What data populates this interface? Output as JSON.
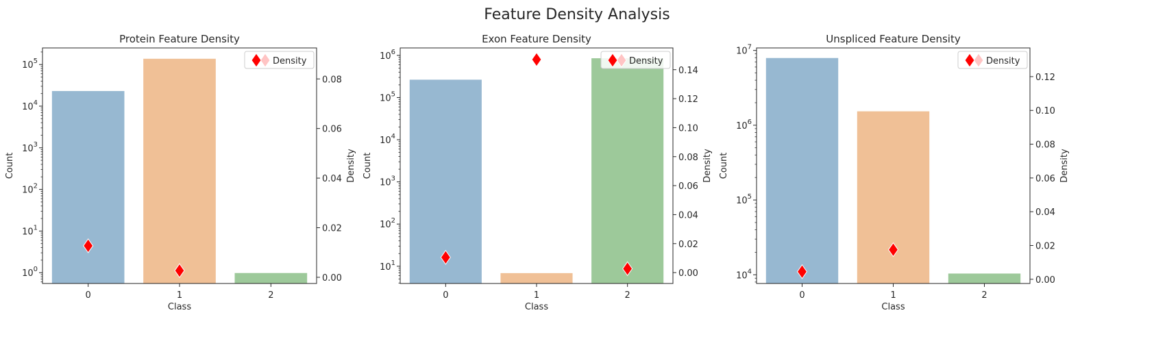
{
  "figure": {
    "title": "Feature Density Analysis"
  },
  "chart_data": [
    {
      "type": "bar",
      "title": "Protein Feature Density",
      "xlabel": "Class",
      "ylabel": "Count",
      "ylabel_right": "Density",
      "yscale": "log",
      "categories": [
        "0",
        "1",
        "2"
      ],
      "values": [
        23500,
        140000,
        1
      ],
      "ylim": [
        0.55,
        250000
      ],
      "y_ticks": [
        {
          "v": 1,
          "exp": "0"
        },
        {
          "v": 10,
          "exp": "1"
        },
        {
          "v": 100,
          "exp": "2"
        },
        {
          "v": 1000,
          "exp": "3"
        },
        {
          "v": 10000,
          "exp": "4"
        },
        {
          "v": 100000,
          "exp": "5"
        }
      ],
      "density": {
        "name": "Density",
        "values": [
          0.0127,
          0.0027,
          null
        ],
        "ylim": [
          -0.0025,
          0.0925
        ],
        "ticks": [
          "0.00",
          "0.02",
          "0.04",
          "0.06",
          "0.08"
        ],
        "tick_values": [
          0,
          0.02,
          0.04,
          0.06,
          0.08
        ]
      },
      "legend": {
        "position": "upper-right",
        "label": "Density"
      }
    },
    {
      "type": "bar",
      "title": "Exon Feature Density",
      "xlabel": "Class",
      "ylabel": "Count",
      "ylabel_right": "Density",
      "yscale": "log",
      "categories": [
        "0",
        "1",
        "2"
      ],
      "values": [
        270000,
        7,
        870000
      ],
      "ylim": [
        3.9,
        1500000
      ],
      "y_ticks": [
        {
          "v": 10,
          "exp": "1"
        },
        {
          "v": 100,
          "exp": "2"
        },
        {
          "v": 1000,
          "exp": "3"
        },
        {
          "v": 10000,
          "exp": "4"
        },
        {
          "v": 100000,
          "exp": "5"
        },
        {
          "v": 1000000,
          "exp": "6"
        }
      ],
      "density": {
        "name": "Density",
        "values": [
          0.0105,
          0.147,
          0.0027
        ],
        "ylim": [
          -0.0075,
          0.155
        ],
        "ticks": [
          "0.00",
          "0.02",
          "0.04",
          "0.06",
          "0.08",
          "0.10",
          "0.12",
          "0.14"
        ],
        "tick_values": [
          0,
          0.02,
          0.04,
          0.06,
          0.08,
          0.1,
          0.12,
          0.14
        ]
      },
      "legend": {
        "position": "upper-right",
        "label": "Density"
      }
    },
    {
      "type": "bar",
      "title": "Unspliced Feature Density",
      "xlabel": "Class",
      "ylabel": "Count",
      "ylabel_right": "Density",
      "yscale": "log",
      "categories": [
        "0",
        "1",
        "2"
      ],
      "values": [
        8000000,
        1550000,
        10500
      ],
      "ylim": [
        7650,
        10800000
      ],
      "y_ticks": [
        {
          "v": 10000,
          "exp": "4"
        },
        {
          "v": 100000,
          "exp": "5"
        },
        {
          "v": 1000000,
          "exp": "6"
        },
        {
          "v": 10000000,
          "exp": "7"
        }
      ],
      "density": {
        "name": "Density",
        "values": [
          0.0045,
          0.0175,
          null
        ],
        "ylim": [
          -0.0025,
          0.137
        ],
        "ticks": [
          "0.00",
          "0.02",
          "0.04",
          "0.06",
          "0.08",
          "0.10",
          "0.12"
        ],
        "tick_values": [
          0,
          0.02,
          0.04,
          0.06,
          0.08,
          0.1,
          0.12
        ]
      },
      "legend": {
        "position": "upper-right",
        "label": "Density"
      }
    }
  ],
  "colors": {
    "bars": [
      "#97b8d1",
      "#f0c096",
      "#9dc99a"
    ],
    "marker": "#ff0000",
    "marker_faded": "#ffc4c4",
    "axis": "#262626"
  }
}
